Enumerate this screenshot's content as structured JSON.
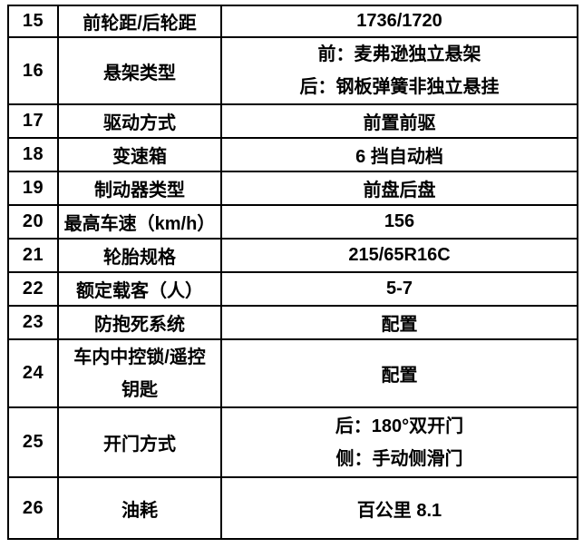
{
  "table": {
    "border_color": "#000000",
    "text_color": "#000000",
    "background_color": "#ffffff",
    "columns": [
      "number",
      "spec-name",
      "spec-value"
    ],
    "rows": [
      {
        "num": "15",
        "label": "前轮距/后轮距",
        "value": "1736/1720"
      },
      {
        "num": "16",
        "label": "悬架类型",
        "value_lines": [
          "前：麦弗逊独立悬架",
          "后：钢板弹簧非独立悬挂"
        ]
      },
      {
        "num": "17",
        "label": "驱动方式",
        "value": "前置前驱"
      },
      {
        "num": "18",
        "label": "变速箱",
        "value": "6 挡自动档"
      },
      {
        "num": "19",
        "label": "制动器类型",
        "value": "前盘后盘"
      },
      {
        "num": "20",
        "label": "最高车速（km/h）",
        "value": "156"
      },
      {
        "num": "21",
        "label": "轮胎规格",
        "value": "215/65R16C"
      },
      {
        "num": "22",
        "label": "额定载客（人）",
        "value": "5-7"
      },
      {
        "num": "23",
        "label": "防抱死系统",
        "value": "配置"
      },
      {
        "num": "24",
        "label_lines": [
          "车内中控锁/遥控",
          "钥匙"
        ],
        "value": "配置"
      },
      {
        "num": "25",
        "label": "开门方式",
        "value_lines": [
          "后：180°双开门",
          "侧：手动侧滑门"
        ]
      },
      {
        "num": "26",
        "label": "油耗",
        "value": "百公里 8.1"
      }
    ]
  }
}
